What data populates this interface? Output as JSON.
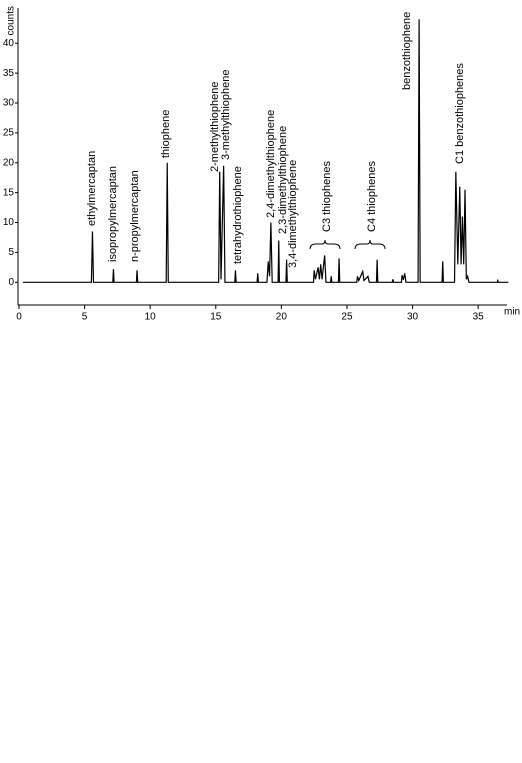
{
  "chart_data": {
    "type": "line",
    "x_label": "min",
    "y_label": "counts",
    "xlim": [
      0,
      37.2
    ],
    "ylim": [
      -3.8,
      45.9
    ],
    "xticks": [
      0,
      5,
      10,
      15,
      20,
      25,
      30,
      35
    ],
    "yticks": [
      0,
      5,
      10,
      15,
      20,
      25,
      30,
      35,
      40
    ],
    "series": [
      {
        "color": "#000000",
        "x": [
          0.3,
          5.52,
          5.6,
          5.68,
          7.15,
          7.2,
          7.25,
          8.95,
          9.0,
          9.05,
          11.22,
          11.3,
          11.38,
          15.22,
          15.3,
          15.4,
          15.6,
          15.7,
          16.45,
          16.5,
          16.55,
          18.15,
          18.2,
          18.25,
          18.9,
          19.0,
          19.1,
          19.2,
          19.3,
          19.75,
          19.8,
          19.85,
          20.35,
          20.4,
          20.45,
          22.45,
          22.5,
          22.6,
          22.8,
          22.9,
          23.0,
          23.1,
          23.3,
          23.4,
          23.75,
          23.8,
          23.85,
          24.35,
          24.4,
          24.45,
          25.75,
          25.8,
          25.9,
          26.2,
          26.3,
          26.6,
          26.7,
          27.25,
          27.3,
          27.35,
          28.45,
          28.5,
          28.55,
          29.15,
          29.2,
          29.3,
          29.4,
          29.5,
          30.42,
          30.5,
          30.58,
          32.25,
          32.3,
          32.35,
          33.2,
          33.3,
          33.45,
          33.6,
          33.7,
          33.8,
          33.9,
          34.0,
          34.1,
          34.2,
          34.3,
          36.45,
          36.5,
          36.55,
          37.3
        ],
        "values": [
          0,
          0,
          8.5,
          0,
          0,
          2.2,
          0,
          0,
          2.0,
          0,
          0,
          20,
          0,
          0,
          18.5,
          0.5,
          19.5,
          0,
          0,
          2,
          0,
          0,
          1.5,
          0,
          0,
          3.5,
          1,
          10,
          0,
          0,
          7,
          0,
          0,
          3.8,
          0,
          0,
          2,
          0.5,
          2.5,
          0.5,
          3,
          0.5,
          4.5,
          0,
          0,
          1,
          0,
          0,
          4,
          0,
          0,
          1,
          0.3,
          1.8,
          0.3,
          1,
          0,
          0,
          3.8,
          0,
          0,
          0.5,
          0,
          0,
          1.2,
          0.4,
          1.5,
          0,
          0,
          44,
          0,
          0,
          3.5,
          0,
          0,
          18.5,
          3,
          16,
          3,
          11,
          3,
          15.5,
          0.5,
          1,
          0,
          0,
          0.3,
          0,
          0
        ]
      }
    ],
    "annotations": [
      "ethylmercaptan",
      "isopropylmercaptan",
      "n-propylmercaptan",
      "thiophene",
      "2-methylthiophene",
      "3-methylthiophene",
      "tetrahydrothiophene",
      "2,4-dimethylthiophene",
      "2,3-dimethylthiophene",
      "3,4-dimethylthiophene",
      "C3 thiophenes",
      "C4 thiophenes",
      "benzothiophene",
      "C1 benzothiophenes"
    ]
  }
}
